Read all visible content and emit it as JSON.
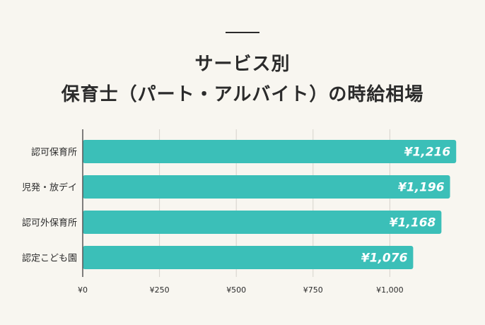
{
  "title": {
    "line1": "サービス別",
    "line2": "保育士（パート・アルバイト）の時給相場"
  },
  "colors": {
    "bar": "#3bbfb8",
    "grid": "#d6d3cc",
    "axis": "#555555",
    "background": "#f8f6f0"
  },
  "chart_data": {
    "type": "bar",
    "orientation": "horizontal",
    "categories": [
      "認可保育所",
      "児発・放デイ",
      "認可外保育所",
      "認定こども園"
    ],
    "values": [
      1216,
      1196,
      1168,
      1076
    ],
    "value_labels": [
      "¥1,216",
      "¥1,196",
      "¥1,168",
      "¥1,076"
    ],
    "xlim": [
      0,
      1250
    ],
    "xticks": [
      0,
      250,
      500,
      750,
      1000
    ],
    "xtick_labels": [
      "¥0",
      "¥250",
      "¥500",
      "¥750",
      "¥1,000"
    ],
    "grid": true,
    "legend": "none"
  }
}
